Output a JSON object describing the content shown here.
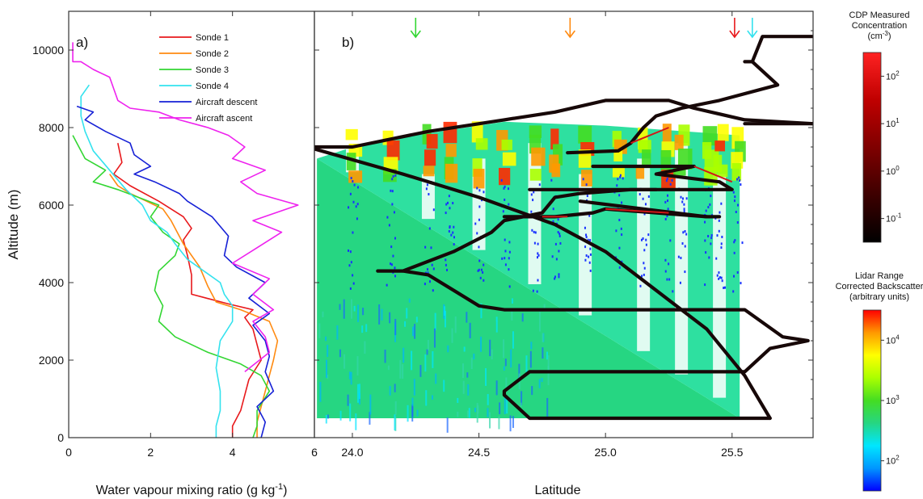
{
  "figure": {
    "shared": {
      "ylabel": "Altitude (m)",
      "yticks": [
        0,
        2000,
        4000,
        6000,
        8000,
        10000
      ],
      "ylim": [
        0,
        11000
      ]
    },
    "colors": {
      "sonde1": "#e8191c",
      "sonde2": "#ff8a10",
      "sonde3": "#33d633",
      "sonde4": "#33e2ee",
      "aircraft_descent": "#1621d6",
      "aircraft_ascent": "#ee22ee",
      "track": "#170808"
    }
  },
  "chart_data": [
    {
      "type": "line",
      "panel_label": "a)",
      "xlabel": "Water vapour mixing ratio (g kg-1)",
      "xlabel_parts": [
        "Water vapour mixing ratio (g kg",
        "-1",
        ")"
      ],
      "ylabel": "Altitude (m)",
      "xlim": [
        0,
        6
      ],
      "ylim": [
        0,
        11000
      ],
      "xticks": [
        0,
        2,
        4,
        6
      ],
      "yticks": [
        0,
        2000,
        4000,
        6000,
        8000,
        10000
      ],
      "legend_position": "top-right",
      "series": [
        {
          "name": "Sonde 1",
          "color": "#e8191c",
          "points": [
            [
              4.0,
              0
            ],
            [
              4.0,
              300
            ],
            [
              4.2,
              700
            ],
            [
              4.3,
              1100
            ],
            [
              4.4,
              1500
            ],
            [
              4.7,
              2000
            ],
            [
              4.6,
              2400
            ],
            [
              4.5,
              2800
            ],
            [
              4.3,
              3100
            ],
            [
              4.5,
              3300
            ],
            [
              3.9,
              3450
            ],
            [
              3.0,
              3700
            ],
            [
              3.0,
              4200
            ],
            [
              2.9,
              4700
            ],
            [
              2.8,
              5100
            ],
            [
              3.0,
              5400
            ],
            [
              2.8,
              5700
            ],
            [
              2.2,
              6100
            ],
            [
              1.5,
              6500
            ],
            [
              1.1,
              6800
            ],
            [
              1.3,
              7100
            ],
            [
              1.2,
              7600
            ]
          ]
        },
        {
          "name": "Sonde 2",
          "color": "#ff8a10",
          "points": [
            [
              4.6,
              0
            ],
            [
              4.6,
              400
            ],
            [
              4.7,
              800
            ],
            [
              4.8,
              1200
            ],
            [
              4.9,
              1600
            ],
            [
              5.0,
              2000
            ],
            [
              5.1,
              2500
            ],
            [
              4.9,
              3000
            ],
            [
              4.2,
              3300
            ],
            [
              3.6,
              3500
            ],
            [
              3.4,
              3900
            ],
            [
              3.2,
              4400
            ],
            [
              2.8,
              5000
            ],
            [
              2.5,
              5600
            ],
            [
              2.3,
              5900
            ],
            [
              1.9,
              6100
            ],
            [
              1.5,
              6300
            ],
            [
              1.2,
              6500
            ],
            [
              1.0,
              6800
            ]
          ]
        },
        {
          "name": "Sonde 3",
          "color": "#33d633",
          "points": [
            [
              4.5,
              0
            ],
            [
              4.6,
              300
            ],
            [
              4.6,
              700
            ],
            [
              4.9,
              1200
            ],
            [
              4.7,
              1600
            ],
            [
              4.2,
              1900
            ],
            [
              3.4,
              2200
            ],
            [
              2.6,
              2600
            ],
            [
              2.2,
              3000
            ],
            [
              2.3,
              3400
            ],
            [
              2.1,
              3800
            ],
            [
              2.2,
              4300
            ],
            [
              2.6,
              4700
            ],
            [
              2.7,
              5000
            ],
            [
              2.3,
              5300
            ],
            [
              2.0,
              5700
            ],
            [
              2.2,
              6000
            ],
            [
              1.2,
              6400
            ],
            [
              0.6,
              6600
            ],
            [
              0.9,
              6900
            ],
            [
              0.4,
              7200
            ],
            [
              0.2,
              7600
            ],
            [
              0.1,
              7800
            ]
          ]
        },
        {
          "name": "Sonde 4",
          "color": "#33e2ee",
          "points": [
            [
              3.6,
              0
            ],
            [
              3.6,
              300
            ],
            [
              3.7,
              700
            ],
            [
              3.7,
              1200
            ],
            [
              3.6,
              1800
            ],
            [
              3.7,
              2500
            ],
            [
              4.0,
              3000
            ],
            [
              4.0,
              3400
            ],
            [
              3.8,
              3700
            ],
            [
              3.7,
              4000
            ],
            [
              3.3,
              4300
            ],
            [
              2.9,
              4600
            ],
            [
              2.6,
              5000
            ],
            [
              2.4,
              5300
            ],
            [
              2.0,
              5600
            ],
            [
              1.8,
              6000
            ],
            [
              1.4,
              6400
            ],
            [
              1.0,
              6900
            ],
            [
              0.6,
              7400
            ],
            [
              0.4,
              7900
            ],
            [
              0.3,
              8300
            ],
            [
              0.3,
              8800
            ],
            [
              0.5,
              9100
            ]
          ]
        },
        {
          "name": "Aircraft descent",
          "color": "#1621d6",
          "points": [
            [
              4.7,
              0
            ],
            [
              4.8,
              400
            ],
            [
              4.6,
              800
            ],
            [
              5.0,
              1200
            ],
            [
              4.8,
              1700
            ],
            [
              4.9,
              2100
            ],
            [
              4.8,
              2500
            ],
            [
              4.5,
              2900
            ],
            [
              4.9,
              3200
            ],
            [
              4.4,
              3600
            ],
            [
              4.8,
              4000
            ],
            [
              4.1,
              4400
            ],
            [
              3.8,
              4700
            ],
            [
              3.9,
              5200
            ],
            [
              3.5,
              5700
            ],
            [
              2.9,
              6100
            ],
            [
              2.7,
              6300
            ],
            [
              2.1,
              6600
            ],
            [
              1.6,
              6800
            ],
            [
              2.0,
              7000
            ],
            [
              1.6,
              7300
            ],
            [
              1.5,
              7600
            ],
            [
              0.9,
              7900
            ],
            [
              0.4,
              8200
            ],
            [
              0.6,
              8400
            ],
            [
              0.2,
              8550
            ]
          ]
        },
        {
          "name": "Aircraft ascent",
          "color": "#ee22ee",
          "points": [
            [
              4.3,
              1700
            ],
            [
              4.9,
              2200
            ],
            [
              4.8,
              2600
            ],
            [
              4.5,
              3000
            ],
            [
              5.0,
              3300
            ],
            [
              4.5,
              3700
            ],
            [
              4.9,
              4100
            ],
            [
              4.0,
              4500
            ],
            [
              4.6,
              4900
            ],
            [
              5.2,
              5300
            ],
            [
              4.5,
              5600
            ],
            [
              5.6,
              6000
            ],
            [
              4.6,
              6300
            ],
            [
              4.2,
              6600
            ],
            [
              4.8,
              6900
            ],
            [
              4.0,
              7200
            ],
            [
              4.3,
              7500
            ],
            [
              3.9,
              7800
            ],
            [
              3.4,
              8000
            ],
            [
              2.7,
              8200
            ],
            [
              2.2,
              8400
            ],
            [
              1.5,
              8500
            ],
            [
              1.2,
              8700
            ],
            [
              1.1,
              9000
            ],
            [
              1.0,
              9300
            ],
            [
              0.6,
              9500
            ],
            [
              0.3,
              9700
            ],
            [
              0.1,
              9700
            ],
            [
              0.1,
              10200
            ]
          ]
        }
      ]
    },
    {
      "type": "heatmap",
      "panel_label": "b)",
      "xlabel": "Latitude",
      "xlim": [
        23.85,
        25.82
      ],
      "ylim": [
        0,
        11000
      ],
      "xticks": [
        24.0,
        24.5,
        25.0,
        25.5
      ],
      "xtick_labels": [
        "24.0",
        "24.5",
        "25.0",
        "25.5"
      ],
      "arrows": [
        {
          "x": 24.25,
          "color": "#33d633"
        },
        {
          "x": 24.86,
          "color": "#ff8a10"
        },
        {
          "x": 25.51,
          "color": "#e8191c"
        },
        {
          "x": 25.58,
          "color": "#33e2ee"
        }
      ],
      "lidar_region": {
        "x_range": [
          23.86,
          25.53
        ],
        "bottom_m": 500,
        "overpass_line": [
          [
            23.86,
            7200
          ],
          [
            25.53,
            500
          ]
        ],
        "descent_cloud_top_m": 7800
      },
      "cloud_columns_x": [
        24.0,
        24.15,
        24.3,
        24.38,
        24.5,
        24.6,
        24.72,
        24.8,
        24.92,
        25.05,
        25.15,
        25.25,
        25.3,
        25.4,
        25.45,
        25.52
      ],
      "flight_track": {
        "segments": [
          [
            [
              25.82,
              10350
            ],
            [
              25.62,
              10350
            ],
            [
              25.58,
              9700
            ]
          ],
          [
            [
              25.55,
              9700
            ],
            [
              25.58,
              9700
            ],
            [
              25.68,
              9100
            ],
            [
              25.45,
              8700
            ],
            [
              25.3,
              8500
            ],
            [
              25.2,
              8300
            ],
            [
              25.15,
              8000
            ],
            [
              25.1,
              7600
            ],
            [
              25.05,
              7400
            ],
            [
              24.85,
              7350
            ]
          ],
          [
            [
              25.55,
              8100
            ],
            [
              25.82,
              8100
            ]
          ],
          [
            [
              23.85,
              7500
            ],
            [
              24.0,
              7500
            ],
            [
              24.3,
              7900
            ],
            [
              24.6,
              8200
            ],
            [
              24.8,
              8400
            ],
            [
              25.0,
              8700
            ],
            [
              25.25,
              8700
            ],
            [
              25.35,
              8500
            ],
            [
              25.55,
              8200
            ],
            [
              25.82,
              8100
            ]
          ],
          [
            [
              23.85,
              7450
            ],
            [
              24.2,
              6800
            ],
            [
              24.5,
              6200
            ],
            [
              24.8,
              5500
            ],
            [
              25.0,
              4800
            ],
            [
              25.2,
              3800
            ],
            [
              25.4,
              2800
            ],
            [
              25.55,
              1600
            ],
            [
              25.65,
              500
            ]
          ],
          [
            [
              24.95,
              7000
            ],
            [
              25.35,
              7000
            ],
            [
              25.2,
              6800
            ],
            [
              25.45,
              6600
            ],
            [
              25.5,
              6400
            ],
            [
              25.1,
              6400
            ],
            [
              24.9,
              6300
            ],
            [
              24.8,
              6200
            ],
            [
              24.75,
              5800
            ],
            [
              24.6,
              5600
            ],
            [
              24.55,
              5300
            ],
            [
              24.4,
              4800
            ],
            [
              24.2,
              4300
            ],
            [
              24.1,
              4300
            ]
          ],
          [
            [
              24.7,
              6400
            ],
            [
              25.2,
              6400
            ]
          ],
          [
            [
              24.9,
              6100
            ],
            [
              25.4,
              5700
            ],
            [
              25.45,
              5700
            ]
          ],
          [
            [
              24.6,
              5700
            ],
            [
              24.75,
              5700
            ],
            [
              24.8,
              5700
            ],
            [
              24.95,
              5800
            ],
            [
              25.0,
              5900
            ],
            [
              25.4,
              5700
            ]
          ],
          [
            [
              24.2,
              4300
            ],
            [
              24.3,
              4200
            ],
            [
              24.4,
              3800
            ],
            [
              24.5,
              3400
            ],
            [
              24.6,
              3300
            ],
            [
              25.2,
              3300
            ],
            [
              25.55,
              3300
            ],
            [
              25.7,
              2600
            ],
            [
              25.8,
              2500
            ],
            [
              25.65,
              2300
            ],
            [
              25.55,
              1700
            ],
            [
              25.3,
              1700
            ],
            [
              24.7,
              1700
            ],
            [
              24.6,
              1200
            ],
            [
              24.6,
              1100
            ],
            [
              24.65,
              800
            ],
            [
              24.7,
              500
            ],
            [
              25.0,
              500
            ],
            [
              25.65,
              500
            ]
          ]
        ]
      },
      "colorbars": [
        {
          "title_lines": [
            "CDP Measured",
            "Concentration"
          ],
          "unit_parts": [
            "(cm",
            "-3",
            ")"
          ],
          "tick_labels": [
            {
              "base": "10",
              "exp": "2"
            },
            {
              "base": "10",
              "exp": "1"
            },
            {
              "base": "10",
              "exp": "0"
            },
            {
              "base": "10",
              "exp": "-1"
            }
          ],
          "colors": [
            "#000000",
            "#3d0000",
            "#7f0000",
            "#bf0000",
            "#ff2222"
          ]
        },
        {
          "title_lines": [
            "Lidar Range",
            "Corrected Backscatter",
            "(arbitrary units)"
          ],
          "tick_labels": [
            {
              "base": "10",
              "exp": "4"
            },
            {
              "base": "10",
              "exp": "3"
            },
            {
              "base": "10",
              "exp": "2"
            }
          ],
          "colors": [
            "#0000ff",
            "#0096ff",
            "#00e6ff",
            "#26d682",
            "#44dd22",
            "#aaff00",
            "#ffff00",
            "#ff9900",
            "#ff0000"
          ]
        }
      ]
    }
  ]
}
